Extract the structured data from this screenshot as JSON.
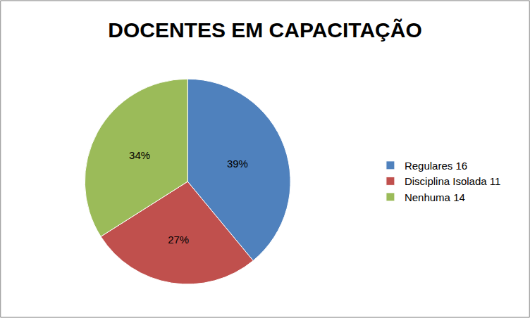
{
  "chart_data": {
    "type": "pie",
    "title": "DOCENTES EM CAPACITAÇÃO",
    "categories": [
      "Regulares 16",
      "Disciplina Isolada 11",
      "Nenhuma 14"
    ],
    "values": [
      39,
      27,
      34
    ],
    "value_labels": [
      "39%",
      "27%",
      "34%"
    ],
    "colors": [
      "#4f81bd",
      "#c0504d",
      "#9bbb59"
    ],
    "data_labels": true,
    "legend": "right"
  }
}
